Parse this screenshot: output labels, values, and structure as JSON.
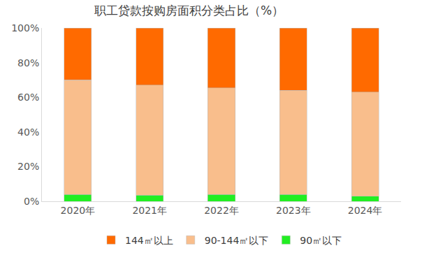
{
  "chart_data": {
    "type": "bar",
    "title": "职工贷款按购房面积分类占比（%）",
    "stacked": true,
    "categories": [
      "2020年",
      "2021年",
      "2022年",
      "2023年",
      "2024年"
    ],
    "series": [
      {
        "name": "90㎡以下",
        "color": "#22ee22",
        "values": [
          4,
          3.5,
          4,
          4,
          3
        ]
      },
      {
        "name": "90-144㎡以下",
        "color": "#f9be8c",
        "values": [
          66,
          63.5,
          61.5,
          60,
          60
        ]
      },
      {
        "name": "144㎡以上",
        "color": "#ff6a00",
        "values": [
          30,
          33,
          34.5,
          36,
          37
        ]
      }
    ],
    "ylim": [
      0,
      100
    ],
    "yticks": [
      {
        "value": 0,
        "label": "0%"
      },
      {
        "value": 20,
        "label": "20%"
      },
      {
        "value": 40,
        "label": "40%"
      },
      {
        "value": 60,
        "label": "60%"
      },
      {
        "value": 80,
        "label": "80%"
      },
      {
        "value": 100,
        "label": "100%"
      }
    ],
    "grid": false,
    "legend": "bottom"
  }
}
